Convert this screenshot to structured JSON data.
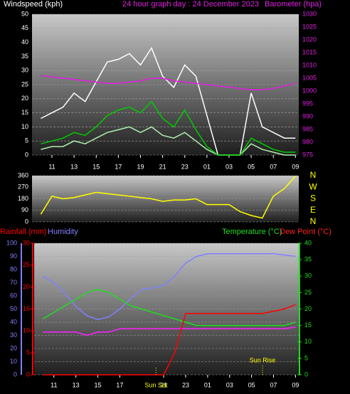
{
  "chart_data": [
    {
      "type": "line",
      "title": "24 hour graph day : 24 December 2023",
      "ylabel": "Windspeed (kph)",
      "y2label": "Barometer (hpa)",
      "x": [
        10,
        11,
        12,
        13,
        14,
        15,
        16,
        17,
        18,
        19,
        20,
        21,
        22,
        23,
        24,
        25,
        26,
        27,
        28,
        29,
        30,
        31,
        32,
        33
      ],
      "xlim": [
        9.2,
        33.3
      ],
      "xticks": [
        11,
        13,
        15,
        17,
        19,
        21,
        23,
        {
          "value": 25,
          "label": "01"
        },
        {
          "value": 27,
          "label": "03"
        },
        {
          "value": 29,
          "label": "05"
        },
        {
          "value": 31,
          "label": "07"
        },
        {
          "value": 33,
          "label": "09"
        }
      ],
      "ylim": [
        0,
        50
      ],
      "yticks": [
        0,
        5,
        10,
        15,
        20,
        25,
        30,
        35,
        40,
        45,
        50
      ],
      "y2lim": [
        975,
        1030
      ],
      "y2ticks": [
        975,
        980,
        985,
        990,
        995,
        1000,
        1005,
        1010,
        1015,
        1020,
        1025,
        1030
      ],
      "grid": true,
      "series": [
        {
          "color": "#ffffff",
          "values": [
            13,
            15,
            17,
            22,
            19,
            26,
            33,
            34,
            36,
            32,
            38,
            28,
            24,
            32,
            28,
            14,
            0,
            0,
            0,
            22,
            10,
            8,
            6,
            6
          ]
        },
        {
          "color": "#b0f0b0",
          "values": [
            2,
            3,
            3,
            5,
            4,
            6,
            8,
            9,
            10,
            8,
            10,
            7,
            6,
            8,
            5,
            2,
            0,
            0,
            0,
            4,
            2,
            1,
            0,
            0
          ]
        },
        {
          "color": "#00cc00",
          "values": [
            4,
            5,
            6,
            8,
            7,
            10,
            14,
            16,
            17,
            15,
            19,
            13,
            10,
            16,
            9,
            3,
            0,
            0,
            0,
            6,
            4,
            2,
            1,
            1
          ]
        },
        {
          "color": "#e020e0",
          "axis": "y2",
          "values": [
            1006,
            1005.5,
            1005,
            1004.5,
            1004,
            1003.5,
            1003,
            1003,
            1003.5,
            1004,
            1005,
            1005,
            1004,
            1003.5,
            1003,
            1002.5,
            1002,
            1001.5,
            1001,
            1000.5,
            1000.5,
            1001,
            1002,
            1003
          ]
        }
      ]
    },
    {
      "type": "line",
      "x": [
        10,
        11,
        12,
        13,
        14,
        15,
        16,
        17,
        18,
        19,
        20,
        21,
        22,
        23,
        24,
        25,
        26,
        27,
        28,
        29,
        30,
        31,
        32,
        33
      ],
      "xlim": [
        9.2,
        33.3
      ],
      "ylim": [
        0,
        360
      ],
      "yticks": [
        0,
        90,
        180,
        270,
        360
      ],
      "y2lim": [
        0,
        360
      ],
      "y2ticks": [
        {
          "value": 360,
          "label": "N"
        },
        {
          "value": 270,
          "label": "W"
        },
        {
          "value": 180,
          "label": "S"
        },
        {
          "value": 90,
          "label": "E"
        },
        {
          "value": 0,
          "label": "N"
        }
      ],
      "grid": true,
      "series": [
        {
          "color": "#ffff00",
          "values": [
            60,
            200,
            180,
            190,
            210,
            230,
            220,
            210,
            200,
            190,
            180,
            160,
            170,
            170,
            180,
            135,
            135,
            135,
            80,
            50,
            30,
            200,
            260,
            355
          ]
        }
      ]
    },
    {
      "type": "line",
      "x": [
        10,
        11,
        12,
        13,
        14,
        15,
        16,
        17,
        18,
        19,
        20,
        21,
        22,
        23,
        24,
        25,
        26,
        27,
        28,
        29,
        30,
        31,
        32,
        33
      ],
      "xlim": [
        9.2,
        33.3
      ],
      "xticks": [
        11,
        13,
        15,
        17,
        21,
        23,
        {
          "value": 25,
          "label": "01"
        },
        {
          "value": 27,
          "label": "03"
        },
        {
          "value": 29,
          "label": "05"
        },
        {
          "value": 31,
          "label": "07"
        },
        {
          "value": 33,
          "label": "09"
        }
      ],
      "ylim": [
        0,
        100
      ],
      "yticks": [
        0,
        10,
        20,
        30,
        40,
        50,
        60,
        70,
        80,
        90,
        100
      ],
      "y2lim": [
        0,
        40
      ],
      "y2ticks": [
        0,
        5,
        10,
        15,
        20,
        25,
        30,
        35,
        40
      ],
      "y3lim": [
        0,
        30
      ],
      "y3ticks": [
        0,
        5,
        10,
        15,
        20,
        25,
        30
      ],
      "grid": true,
      "series": [
        {
          "name": "Humidity",
          "color": "#8080ff",
          "values": [
            75,
            70,
            62,
            52,
            45,
            42,
            44,
            50,
            58,
            65,
            66,
            68,
            75,
            85,
            90,
            92,
            92,
            92,
            92,
            92,
            92,
            92,
            91,
            90
          ]
        },
        {
          "name": "Temperature (°C)",
          "color": "#20dd20",
          "axis": "y2",
          "values": [
            17,
            19,
            21,
            23,
            25,
            26,
            25,
            23,
            21,
            20,
            19,
            18,
            17,
            16,
            15,
            15,
            15,
            15,
            15,
            15,
            15,
            15,
            15,
            16
          ]
        },
        {
          "name": "Dew Point (°C)",
          "color": "#ff20ff",
          "axis": "y2",
          "values": [
            13,
            13,
            13,
            13,
            12,
            13,
            13,
            14,
            14,
            14,
            14,
            14,
            14,
            14,
            14,
            14,
            14,
            14,
            14,
            14,
            14,
            14,
            14,
            14.5
          ]
        },
        {
          "name": "Rainfall (mm)",
          "color": "#ff0000",
          "axis": "y3",
          "values": [
            0,
            0,
            0,
            0,
            0,
            0,
            0,
            0,
            0,
            0,
            0,
            0,
            5,
            14,
            14,
            14,
            14,
            14,
            14,
            14,
            14,
            14.5,
            15,
            16
          ]
        }
      ],
      "annotations": [
        {
          "text": "Sun Set",
          "x": 20.3
        },
        {
          "text": "Sun Rise",
          "x": 30
        }
      ]
    }
  ]
}
